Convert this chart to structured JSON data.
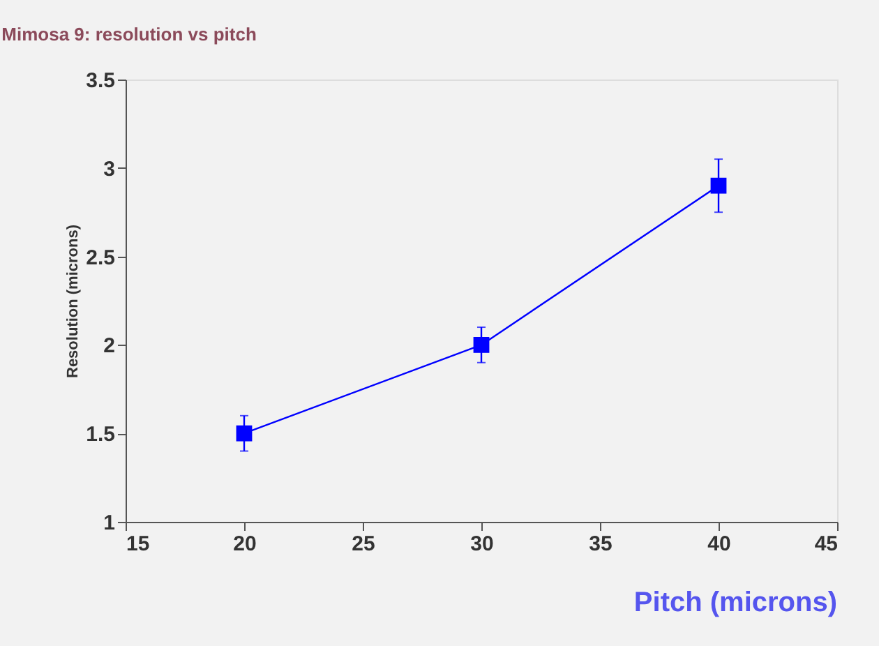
{
  "chart_data": {
    "type": "line",
    "title": "Mimosa 9: resolution vs pitch",
    "xlabel": "Pitch (microns)",
    "ylabel": "Resolution (microns)",
    "x": [
      20,
      30,
      40
    ],
    "series": [
      {
        "color": "#0000ff",
        "values": [
          1.5,
          2.0,
          2.9
        ],
        "errors": [
          [
            1.4,
            1.6
          ],
          [
            1.9,
            2.1
          ],
          [
            2.75,
            3.05
          ]
        ]
      }
    ],
    "xlim": [
      15,
      45
    ],
    "xticks": [
      15,
      20,
      25,
      30,
      35,
      40,
      45
    ],
    "ylim": [
      1,
      3.5
    ],
    "yticks": [
      1,
      1.5,
      2,
      2.5,
      3,
      3.5
    ],
    "grid": false,
    "marker": "square",
    "line_style": "solid"
  }
}
